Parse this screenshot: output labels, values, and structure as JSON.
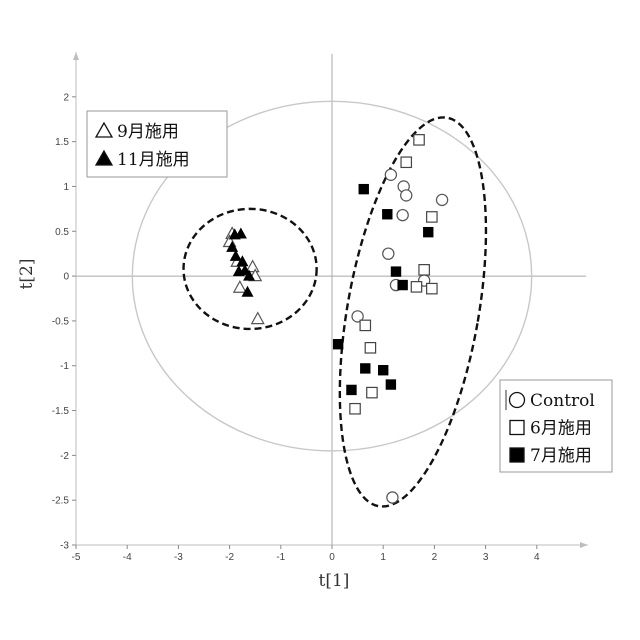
{
  "chart_data": {
    "type": "scatter",
    "title": "",
    "xlabel": "t[1]",
    "ylabel": "t[2]",
    "xlim": [
      -5,
      5
    ],
    "ylim": [
      -3,
      2.5
    ],
    "x_ticks": [
      -5,
      -4,
      -3,
      -2,
      -1,
      0,
      1,
      2,
      3,
      4
    ],
    "y_ticks": [
      2,
      1.5,
      1,
      0.5,
      0,
      -0.5,
      -1,
      -1.5,
      -2,
      -2.5,
      -3
    ],
    "x_tick_labels": [
      "-5",
      "-4",
      "-3",
      "-2",
      "-1",
      "0",
      "1",
      "2",
      "3",
      "4"
    ],
    "y_tick_labels": [
      "2",
      "1.5",
      "1",
      "0.5",
      "0",
      "-0.5",
      "-1",
      "-1.5",
      "-2",
      "-2.5",
      "-3"
    ],
    "grid": false,
    "hotelling_ellipse": {
      "cx": 0,
      "cy": 0,
      "rx": 3.9,
      "ry": 1.95,
      "color": "#c8c8c8"
    },
    "cluster_outlines": [
      {
        "name": "triangles-cluster",
        "cx": -1.6,
        "cy": 0.08,
        "rx": 1.3,
        "ry": 0.67
      },
      {
        "name": "squares-circles-cluster",
        "cx": 1.58,
        "cy": -0.4,
        "rx": 1.28,
        "ry": 2.2,
        "angle": 10
      }
    ],
    "series": [
      {
        "name": "Control",
        "marker": "circle-open",
        "color": "#555555",
        "x": [
          1.15,
          1.4,
          1.45,
          1.38,
          2.15,
          1.1,
          1.25,
          1.8,
          0.5,
          1.18
        ],
        "y": [
          1.13,
          1.0,
          0.9,
          0.68,
          0.85,
          0.25,
          -0.1,
          -0.05,
          -0.45,
          -2.47
        ]
      },
      {
        "name": "6月施用",
        "marker": "square-open",
        "color": "#444444",
        "x": [
          1.7,
          1.45,
          1.95,
          1.8,
          1.65,
          1.95,
          0.65,
          0.75,
          0.78,
          0.45
        ],
        "y": [
          1.52,
          1.27,
          0.66,
          0.07,
          -0.12,
          -0.14,
          -0.55,
          -0.8,
          -1.3,
          -1.48
        ]
      },
      {
        "name": "7月施用",
        "marker": "square-filled",
        "color": "#000000",
        "x": [
          0.62,
          1.08,
          1.88,
          1.25,
          1.38,
          0.12,
          0.65,
          1.0,
          0.38,
          1.15
        ],
        "y": [
          0.97,
          0.69,
          0.49,
          0.05,
          -0.1,
          -0.76,
          -1.03,
          -1.05,
          -1.27,
          -1.21
        ]
      },
      {
        "name": "9月施用",
        "marker": "triangle-open",
        "color": "#555555",
        "x": [
          -1.95,
          -2.0,
          -1.85,
          -1.55,
          -1.5,
          -1.8,
          -1.45
        ],
        "y": [
          0.47,
          0.38,
          0.16,
          0.1,
          0.0,
          -0.13,
          -0.48
        ]
      },
      {
        "name": "11月施用",
        "marker": "triangle-filled",
        "color": "#000000",
        "x": [
          -1.9,
          -1.78,
          -1.95,
          -1.88,
          -1.75,
          -1.7,
          -1.82,
          -1.62,
          -1.65
        ],
        "y": [
          0.46,
          0.47,
          0.32,
          0.22,
          0.16,
          0.06,
          0.05,
          0.0,
          -0.18
        ]
      }
    ],
    "legends": [
      {
        "placement": "top-left",
        "entries": [
          "9月施用",
          "11月施用"
        ]
      },
      {
        "placement": "bottom-right",
        "entries": [
          "Control",
          "6月施用",
          "7月施用"
        ]
      }
    ]
  }
}
